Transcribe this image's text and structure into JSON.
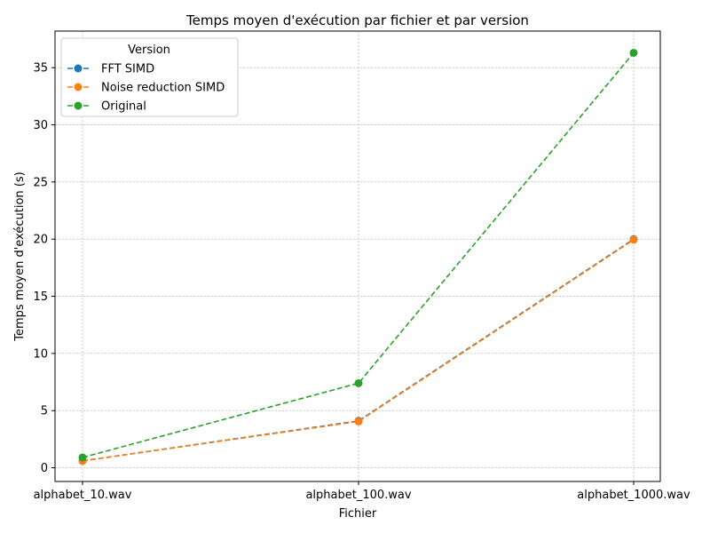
{
  "chart_data": {
    "type": "line",
    "title": "Temps moyen d'exécution par fichier et par version",
    "xlabel": "Fichier",
    "ylabel": "Temps moyen d'exécution (s)",
    "categories": [
      "alphabet_10.wav",
      "alphabet_100.wav",
      "alphabet_1000.wav"
    ],
    "ylim": [
      -1.2,
      38.2
    ],
    "yticks": [
      0,
      5,
      10,
      15,
      20,
      25,
      30,
      35
    ],
    "grid": true,
    "legend": {
      "title": "Version",
      "placement": "top-left"
    },
    "series": [
      {
        "name": "FFT SIMD",
        "color": "#1f77b4",
        "values": [
          0.6,
          4.1,
          20.0
        ]
      },
      {
        "name": "Noise reduction SIMD",
        "color": "#ff7f0e",
        "values": [
          0.6,
          4.05,
          19.95
        ]
      },
      {
        "name": "Original",
        "color": "#2ca02c",
        "values": [
          0.9,
          7.4,
          36.3
        ]
      }
    ]
  }
}
